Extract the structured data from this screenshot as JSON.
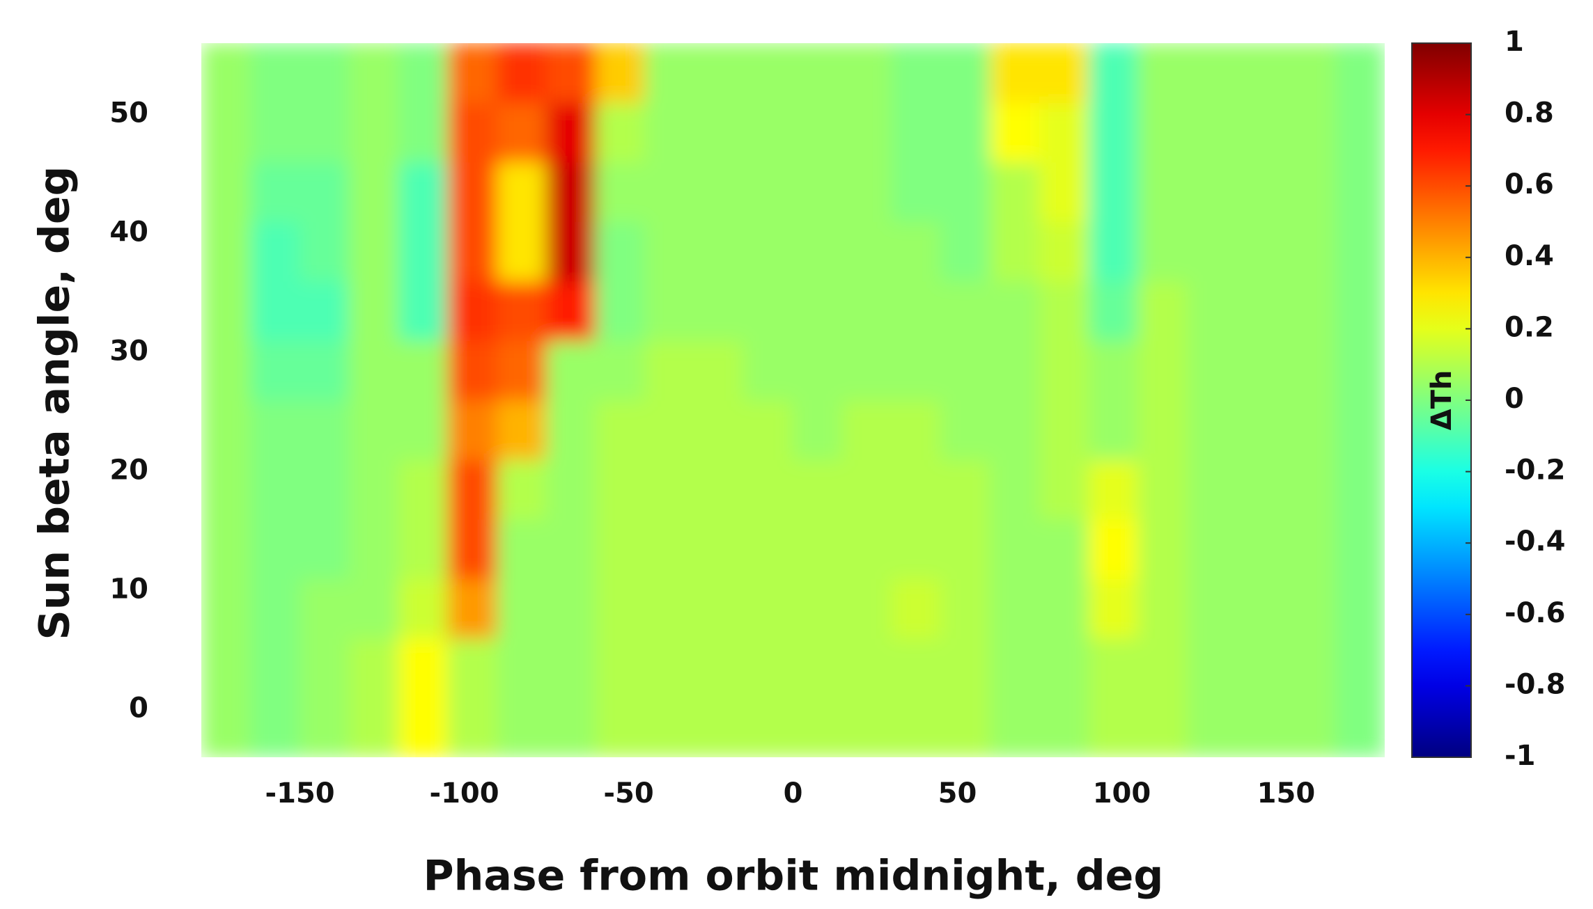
{
  "chart_data": {
    "type": "heatmap",
    "xlabel": "Phase from orbit midnight, deg",
    "ylabel": "Sun beta angle, deg",
    "colorbar_label": "ΔTh",
    "colormap": "jet",
    "xlim": [
      -180,
      180
    ],
    "ylim": [
      -4,
      56
    ],
    "xticks": [
      -150,
      -100,
      -50,
      0,
      50,
      100,
      150
    ],
    "yticks": [
      0,
      10,
      20,
      30,
      40,
      50
    ],
    "zlim": [
      -1,
      1
    ],
    "zticks": [
      -1,
      -0.8,
      -0.6,
      -0.4,
      -0.2,
      0,
      0.2,
      0.4,
      0.6,
      0.8,
      1
    ],
    "x": [
      -172.5,
      -157.5,
      -142.5,
      -127.5,
      -112.5,
      -97.5,
      -82.5,
      -67.5,
      -52.5,
      -37.5,
      -22.5,
      -7.5,
      7.5,
      22.5,
      37.5,
      52.5,
      67.5,
      82.5,
      97.5,
      112.5,
      127.5,
      142.5,
      157.5,
      172.5
    ],
    "y": [
      -1.5,
      3.5,
      8.5,
      13.5,
      18.5,
      23.5,
      28.5,
      33.5,
      38.5,
      43.5,
      48.5,
      53.5
    ],
    "z": [
      [
        0.05,
        0,
        0.05,
        0.1,
        0.25,
        0.1,
        0.05,
        0.05,
        0.1,
        0.1,
        0.1,
        0.1,
        0.1,
        0.1,
        0.1,
        0.1,
        0.05,
        0.05,
        0.1,
        0.1,
        0.05,
        0.05,
        0.05,
        0
      ],
      [
        0.05,
        0,
        0.05,
        0.1,
        0.25,
        0.1,
        0.05,
        0.05,
        0.1,
        0.1,
        0.1,
        0.1,
        0.1,
        0.1,
        0.1,
        0.1,
        0.05,
        0.05,
        0.1,
        0.1,
        0.05,
        0.05,
        0.05,
        0
      ],
      [
        0.05,
        0,
        0.05,
        0.05,
        0.15,
        0.45,
        0.05,
        0.05,
        0.1,
        0.1,
        0.1,
        0.1,
        0.1,
        0.1,
        0.15,
        0.1,
        0.05,
        0.05,
        0.2,
        0.1,
        0.05,
        0.05,
        0.05,
        0
      ],
      [
        0.05,
        0,
        0,
        0.05,
        0.1,
        0.6,
        0.05,
        0.05,
        0.1,
        0.1,
        0.1,
        0.1,
        0.1,
        0.1,
        0.1,
        0.1,
        0.05,
        0.05,
        0.25,
        0.1,
        0.05,
        0.05,
        0.05,
        0
      ],
      [
        0.05,
        0,
        0,
        0.05,
        0.1,
        0.6,
        0.1,
        0.05,
        0.1,
        0.1,
        0.1,
        0.1,
        0.1,
        0.1,
        0.1,
        0.1,
        0.05,
        0.1,
        0.2,
        0.1,
        0.05,
        0.05,
        0.05,
        0
      ],
      [
        0.05,
        0,
        0,
        0.05,
        0.05,
        0.5,
        0.4,
        0.05,
        0.1,
        0.1,
        0.1,
        0.1,
        0.05,
        0.1,
        0.1,
        0.05,
        0.05,
        0.1,
        0.05,
        0.1,
        0.05,
        0.05,
        0.05,
        0
      ],
      [
        0.05,
        -0.05,
        -0.05,
        0.05,
        0.05,
        0.6,
        0.55,
        0.05,
        0.05,
        0.1,
        0.1,
        0.05,
        0.05,
        0.05,
        0.05,
        0.05,
        0.05,
        0.1,
        0.05,
        0.1,
        0.05,
        0.05,
        0.05,
        0
      ],
      [
        0.05,
        -0.1,
        -0.1,
        0.05,
        -0.1,
        0.65,
        0.6,
        0.7,
        0,
        0.05,
        0.05,
        0.05,
        0.05,
        0.05,
        0.05,
        0.05,
        0.05,
        0.1,
        -0.05,
        0.1,
        0.05,
        0.05,
        0.05,
        0
      ],
      [
        0.05,
        -0.1,
        -0.05,
        0.05,
        -0.1,
        0.6,
        0.3,
        0.85,
        0,
        0.05,
        0.05,
        0.05,
        0.05,
        0.05,
        0.05,
        0,
        0.1,
        0.15,
        -0.1,
        0.05,
        0.05,
        0.05,
        0.05,
        0
      ],
      [
        0.05,
        -0.05,
        -0.05,
        0.05,
        -0.1,
        0.6,
        0.3,
        0.85,
        0.05,
        0.05,
        0.05,
        0.05,
        0.05,
        0.05,
        0,
        0,
        0.1,
        0.2,
        -0.1,
        0.05,
        0.05,
        0.05,
        0.05,
        0
      ],
      [
        0.05,
        0,
        0,
        0.05,
        0,
        0.6,
        0.55,
        0.8,
        0.1,
        0.05,
        0.05,
        0.05,
        0.05,
        0.05,
        0,
        0,
        0.25,
        0.2,
        -0.1,
        0.05,
        0.05,
        0.05,
        0.05,
        0
      ],
      [
        0.05,
        0,
        0,
        0.05,
        0,
        0.55,
        0.65,
        0.6,
        0.35,
        0.05,
        0.05,
        0.05,
        0.05,
        0.05,
        0,
        0,
        0.3,
        0.3,
        -0.1,
        0.05,
        0.05,
        0.05,
        0.05,
        0
      ]
    ]
  }
}
